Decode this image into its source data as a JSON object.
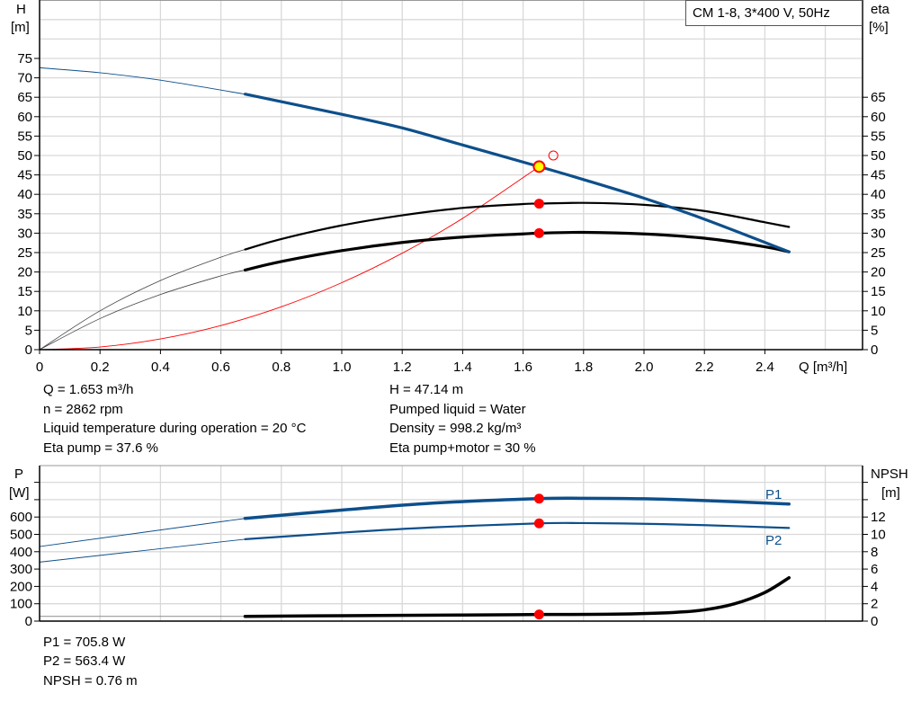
{
  "legend_box": "CM 1-8, 3*400 V, 50Hz",
  "colors": {
    "head": "#0d4f8b",
    "eta": "#000000",
    "system": "#ff0000",
    "power": "#0d4f8b",
    "npsh": "#000000",
    "marker": "#ff0000",
    "duty_point_fill": "#ffff00",
    "grid": "#d9d9d9"
  },
  "chart_data": [
    {
      "type": "line",
      "xlabel": "Q [m³/h]",
      "ylabel_left": [
        "H",
        "[m]"
      ],
      "ylabel_right": [
        "eta",
        "[%]"
      ],
      "xlim": [
        0,
        2.72
      ],
      "ylim": [
        0,
        90
      ],
      "grid": true,
      "x_ticks": [
        "0",
        "0.2",
        "0.4",
        "0.6",
        "0.8",
        "1.0",
        "1.2",
        "1.4",
        "1.6",
        "1.8",
        "2.0",
        "2.2",
        "2.4"
      ],
      "y_left_ticks": [
        0,
        5,
        10,
        15,
        20,
        25,
        30,
        35,
        40,
        45,
        50,
        55,
        60,
        65,
        70,
        75
      ],
      "y_right_ticks": [
        0,
        5,
        10,
        15,
        20,
        25,
        30,
        35,
        40,
        45,
        50,
        55,
        60,
        65
      ],
      "series": [
        {
          "key": "head",
          "x": [
            0,
            0.2,
            0.4,
            0.68,
            1.0,
            1.2,
            1.4,
            1.653,
            1.8,
            2.0,
            2.2,
            2.48
          ],
          "y": [
            72.6,
            71.3,
            69.4,
            65.8,
            60.6,
            57.1,
            52.7,
            47.14,
            43.8,
            39.0,
            33.6,
            25.2
          ],
          "thin_until": 0.68
        },
        {
          "key": "eta_pump",
          "x": [
            0,
            0.2,
            0.4,
            0.6,
            0.68,
            0.8,
            1.0,
            1.2,
            1.4,
            1.6,
            1.653,
            1.8,
            2.0,
            2.2,
            2.4,
            2.48
          ],
          "y": [
            0,
            10,
            17.8,
            23.8,
            25.8,
            28.5,
            32,
            34.6,
            36.5,
            37.5,
            37.6,
            37.8,
            37.3,
            35.7,
            32.8,
            31.6
          ],
          "thin_until": 0.68
        },
        {
          "key": "eta_total",
          "x": [
            0,
            0.2,
            0.4,
            0.6,
            0.68,
            0.8,
            1.0,
            1.2,
            1.4,
            1.6,
            1.653,
            1.8,
            2.0,
            2.2,
            2.4,
            2.48
          ],
          "y": [
            0,
            8,
            14.2,
            19,
            20.5,
            22.7,
            25.5,
            27.6,
            29,
            29.8,
            30,
            30.2,
            29.8,
            28.7,
            26.5,
            25.2
          ],
          "thin_until": 0.68
        },
        {
          "key": "system",
          "x": [
            0,
            0.2,
            0.4,
            0.6,
            0.8,
            1.0,
            1.2,
            1.4,
            1.653
          ],
          "y": [
            0,
            0.69,
            2.76,
            6.21,
            11.04,
            17.25,
            24.84,
            33.81,
            47.14
          ]
        }
      ],
      "markers": [
        {
          "name": "duty-point",
          "x": 1.653,
          "y": 47.14,
          "style": "yellow"
        },
        {
          "name": "eta-pump-point",
          "x": 1.653,
          "y": 37.6,
          "style": "red"
        },
        {
          "name": "eta-total-point",
          "x": 1.653,
          "y": 30,
          "style": "red"
        },
        {
          "name": "requested-point",
          "x": 1.7,
          "y": 50,
          "style": "open"
        }
      ]
    },
    {
      "type": "line",
      "ylabel_left": [
        "P",
        "[W]"
      ],
      "ylabel_right": [
        "NPSH",
        "[m]"
      ],
      "xlim": [
        0,
        2.72
      ],
      "ylim_left": [
        0,
        895
      ],
      "ylim_right": [
        0,
        18.5
      ],
      "grid": true,
      "y_left_ticks": [
        0,
        100,
        200,
        300,
        400,
        500,
        600
      ],
      "y_right_ticks": [
        0,
        2,
        4,
        6,
        8,
        10,
        12
      ],
      "series": [
        {
          "key": "P1",
          "name": "P1",
          "x": [
            0,
            0.68,
            1.0,
            1.3,
            1.653,
            1.8,
            2.0,
            2.2,
            2.48
          ],
          "y": [
            430,
            592,
            640,
            680,
            705.8,
            708,
            705,
            695,
            675
          ],
          "thin_until": 0.68,
          "axis": "left"
        },
        {
          "key": "P2",
          "name": "P2",
          "x": [
            0,
            0.68,
            1.0,
            1.3,
            1.653,
            1.8,
            2.0,
            2.2,
            2.48
          ],
          "y": [
            340,
            472,
            510,
            540,
            563.4,
            565,
            561,
            553,
            537
          ],
          "thin_until": 0.68,
          "axis": "left"
        },
        {
          "key": "npsh",
          "x": [
            0,
            0.68,
            1.0,
            1.4,
            1.653,
            1.9,
            2.1,
            2.2,
            2.3,
            2.4,
            2.48
          ],
          "y": [
            0.55,
            0.55,
            0.62,
            0.7,
            0.76,
            0.8,
            1.0,
            1.3,
            2.0,
            3.3,
            5.0
          ],
          "thin_until": 0.68,
          "axis": "right"
        }
      ],
      "markers": [
        {
          "name": "p1-point",
          "x": 1.653,
          "y": 705.8,
          "axis": "left"
        },
        {
          "name": "p2-point",
          "x": 1.653,
          "y": 563.4,
          "axis": "left"
        },
        {
          "name": "npsh-point",
          "x": 1.653,
          "y": 0.76,
          "axis": "right"
        }
      ]
    }
  ],
  "info_top_left": [
    "Q = 1.653 m³/h",
    "n = 2862 rpm",
    "Liquid temperature during operation = 20 °C",
    "Eta pump = 37.6 %"
  ],
  "info_top_right": [
    "H = 47.14 m",
    "Pumped liquid = Water",
    "Density = 998.2 kg/m³",
    "Eta pump+motor = 30 %"
  ],
  "info_bottom": [
    "P1 = 705.8 W",
    "P2 = 563.4 W",
    "NPSH = 0.76 m"
  ]
}
